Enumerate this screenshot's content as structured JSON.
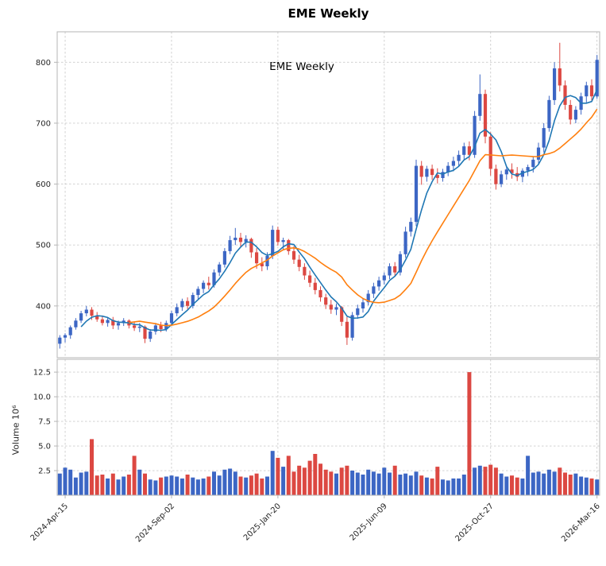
{
  "title": "EME  Weekly",
  "annotation": "EME  Weekly",
  "price_axis": {
    "tick_labels": [
      "400",
      "500",
      "600",
      "700",
      "800"
    ],
    "tick_values": [
      400,
      500,
      600,
      700,
      800
    ],
    "range": [
      315,
      850
    ]
  },
  "volume_axis": {
    "label": "Volume  10⁶",
    "tick_labels": [
      "2.5",
      "5.0",
      "7.5",
      "10.0",
      "12.5"
    ],
    "tick_values": [
      2.5,
      5.0,
      7.5,
      10.0,
      12.5
    ],
    "range": [
      0,
      13.8
    ]
  },
  "x_axis": {
    "tick_labels": [
      "2024-Apr-15",
      "2024-Sep-02",
      "2025-Jan-20",
      "2025-Jun-09",
      "2025-Oct-27",
      "2026-Mar-16"
    ],
    "tick_indices": [
      1,
      21,
      41,
      61,
      81,
      101
    ]
  },
  "colors": {
    "up": "#3C66C4",
    "down": "#DC4842",
    "ma_fast": "#1f77b4",
    "ma_slow": "#ff7f0e",
    "grid": "#cccccc",
    "spine": "#b5b5b5",
    "text": "#262626"
  },
  "chart_data": {
    "type": "candlestick+volume",
    "title": "EME  Weekly",
    "frequency": "weekly",
    "legend_position": "none",
    "grid": true,
    "price_ylim": [
      315,
      850
    ],
    "volume_ylim": [
      0,
      13.8
    ],
    "x_tick_labels": [
      "2024-Apr-15",
      "2024-Sep-02",
      "2025-Jan-20",
      "2025-Jun-09",
      "2025-Oct-27",
      "2026-Mar-16"
    ],
    "x_tick_indices": [
      1,
      21,
      41,
      61,
      81,
      101
    ],
    "moving_average_periods": [
      5,
      14
    ],
    "columns": [
      "open",
      "high",
      "low",
      "close",
      "volume_millions"
    ],
    "ohlcv": [
      [
        338,
        352,
        330,
        348,
        2.2
      ],
      [
        348,
        355,
        340,
        352,
        2.8
      ],
      [
        352,
        368,
        346,
        365,
        2.6
      ],
      [
        365,
        380,
        361,
        376,
        1.8
      ],
      [
        376,
        392,
        372,
        388,
        2.3
      ],
      [
        388,
        400,
        383,
        394,
        2.4
      ],
      [
        394,
        398,
        377,
        384,
        5.7
      ],
      [
        384,
        390,
        374,
        378,
        2.0
      ],
      [
        378,
        384,
        368,
        372,
        2.1
      ],
      [
        372,
        381,
        366,
        377,
        1.7
      ],
      [
        377,
        382,
        362,
        368,
        2.2
      ],
      [
        368,
        376,
        361,
        372,
        1.6
      ],
      [
        372,
        380,
        367,
        376,
        1.9
      ],
      [
        376,
        378,
        363,
        368,
        2.1
      ],
      [
        368,
        374,
        359,
        364,
        4.0
      ],
      [
        364,
        372,
        357,
        366,
        2.6
      ],
      [
        366,
        368,
        339,
        346,
        2.2
      ],
      [
        346,
        362,
        341,
        358,
        1.6
      ],
      [
        358,
        372,
        353,
        368,
        1.5
      ],
      [
        368,
        374,
        357,
        362,
        1.8
      ],
      [
        362,
        376,
        358,
        372,
        1.9
      ],
      [
        372,
        392,
        368,
        388,
        2.0
      ],
      [
        388,
        404,
        383,
        398,
        1.9
      ],
      [
        398,
        412,
        392,
        408,
        1.7
      ],
      [
        408,
        414,
        395,
        400,
        2.1
      ],
      [
        400,
        422,
        396,
        418,
        1.8
      ],
      [
        418,
        432,
        411,
        428,
        1.6
      ],
      [
        428,
        442,
        421,
        438,
        1.7
      ],
      [
        438,
        448,
        427,
        434,
        1.9
      ],
      [
        434,
        460,
        430,
        455,
        2.4
      ],
      [
        455,
        472,
        449,
        468,
        2.0
      ],
      [
        468,
        495,
        463,
        490,
        2.6
      ],
      [
        490,
        515,
        485,
        508,
        2.7
      ],
      [
        508,
        528,
        500,
        512,
        2.4
      ],
      [
        512,
        520,
        497,
        505,
        1.9
      ],
      [
        505,
        516,
        496,
        510,
        1.8
      ],
      [
        510,
        512,
        479,
        488,
        2.0
      ],
      [
        488,
        495,
        461,
        470,
        2.2
      ],
      [
        470,
        480,
        457,
        465,
        1.7
      ],
      [
        465,
        488,
        459,
        482,
        1.9
      ],
      [
        482,
        532,
        477,
        525,
        4.5
      ],
      [
        525,
        530,
        499,
        505,
        3.8
      ],
      [
        505,
        512,
        491,
        508,
        2.9
      ],
      [
        508,
        510,
        484,
        490,
        4.0
      ],
      [
        490,
        498,
        469,
        476,
        2.4
      ],
      [
        476,
        484,
        457,
        464,
        3.0
      ],
      [
        464,
        470,
        443,
        450,
        2.8
      ],
      [
        450,
        458,
        431,
        438,
        3.5
      ],
      [
        438,
        446,
        419,
        426,
        4.2
      ],
      [
        426,
        432,
        407,
        414,
        3.2
      ],
      [
        414,
        420,
        395,
        402,
        2.6
      ],
      [
        402,
        410,
        387,
        394,
        2.4
      ],
      [
        394,
        404,
        385,
        398,
        2.2
      ],
      [
        398,
        400,
        367,
        374,
        2.8
      ],
      [
        374,
        382,
        336,
        348,
        3.0
      ],
      [
        348,
        390,
        343,
        385,
        2.5
      ],
      [
        385,
        402,
        379,
        396,
        2.3
      ],
      [
        396,
        412,
        389,
        406,
        2.1
      ],
      [
        406,
        426,
        401,
        420,
        2.6
      ],
      [
        420,
        438,
        413,
        432,
        2.4
      ],
      [
        432,
        448,
        425,
        442,
        2.2
      ],
      [
        442,
        455,
        435,
        450,
        2.8
      ],
      [
        450,
        470,
        444,
        465,
        2.3
      ],
      [
        465,
        472,
        449,
        455,
        3.0
      ],
      [
        455,
        490,
        450,
        485,
        2.1
      ],
      [
        485,
        530,
        479,
        522,
        2.2
      ],
      [
        522,
        545,
        514,
        538,
        2.0
      ],
      [
        538,
        640,
        531,
        630,
        2.4
      ],
      [
        630,
        638,
        599,
        612,
        2.0
      ],
      [
        612,
        630,
        604,
        625,
        1.8
      ],
      [
        625,
        632,
        607,
        615,
        1.7
      ],
      [
        615,
        626,
        601,
        610,
        2.9
      ],
      [
        610,
        625,
        604,
        620,
        1.6
      ],
      [
        620,
        636,
        613,
        630,
        1.5
      ],
      [
        630,
        645,
        621,
        638,
        1.7
      ],
      [
        638,
        655,
        629,
        648,
        1.7
      ],
      [
        648,
        668,
        640,
        662,
        2.1
      ],
      [
        662,
        670,
        639,
        648,
        12.5
      ],
      [
        648,
        720,
        643,
        712,
        2.8
      ],
      [
        712,
        780,
        704,
        748,
        3.0
      ],
      [
        748,
        755,
        667,
        678,
        2.9
      ],
      [
        678,
        685,
        614,
        625,
        3.1
      ],
      [
        625,
        632,
        591,
        600,
        2.8
      ],
      [
        600,
        622,
        595,
        616,
        2.2
      ],
      [
        616,
        630,
        607,
        624,
        1.9
      ],
      [
        624,
        634,
        609,
        618,
        2.0
      ],
      [
        618,
        628,
        605,
        612,
        1.8
      ],
      [
        612,
        626,
        603,
        622,
        1.7
      ],
      [
        622,
        632,
        613,
        628,
        4.0
      ],
      [
        628,
        645,
        619,
        640,
        2.3
      ],
      [
        640,
        668,
        632,
        660,
        2.4
      ],
      [
        660,
        700,
        652,
        692,
        2.2
      ],
      [
        692,
        745,
        686,
        738,
        2.6
      ],
      [
        738,
        800,
        730,
        790,
        2.4
      ],
      [
        790,
        832,
        752,
        762,
        2.8
      ],
      [
        762,
        770,
        722,
        730,
        2.3
      ],
      [
        730,
        738,
        698,
        706,
        2.1
      ],
      [
        706,
        728,
        700,
        722,
        2.2
      ],
      [
        722,
        750,
        714,
        744,
        1.9
      ],
      [
        744,
        768,
        734,
        762,
        1.8
      ],
      [
        762,
        772,
        736,
        744,
        1.7
      ],
      [
        744,
        812,
        740,
        804,
        1.6
      ]
    ]
  }
}
